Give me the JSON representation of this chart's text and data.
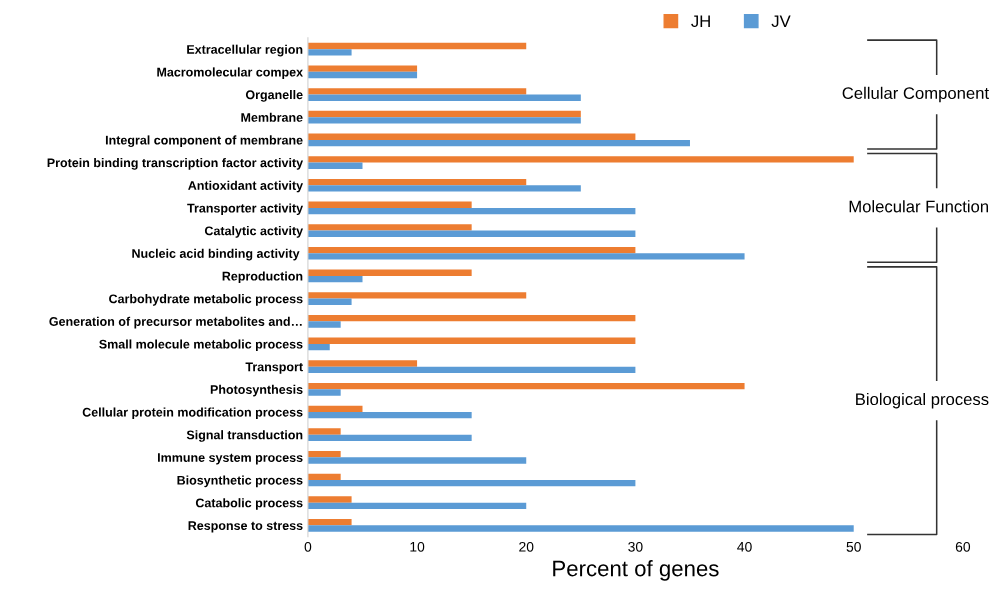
{
  "chart_data": {
    "type": "bar",
    "orientation": "horizontal",
    "categories": [
      "Extracellular region",
      "Macromolecular compex",
      "Organelle",
      "Membrane",
      "Integral component of membrane",
      "Protein binding transcription factor activity",
      "Antioxidant activity",
      "Transporter activity",
      "Catalytic activity",
      "Nucleic acid binding activity ",
      "Reproduction",
      "Carbohydrate metabolic process",
      "Generation of precursor metabolites and…",
      "Small molecule metabolic process",
      "Transport",
      "Photosynthesis",
      "Cellular protein modification process",
      "Signal transduction",
      "Immune system process",
      "Biosynthetic process",
      "Catabolic process",
      "Response to stress"
    ],
    "series": [
      {
        "name": "JH",
        "color": "#ed7d31",
        "values": [
          20,
          10,
          20,
          25,
          30,
          50,
          20,
          15,
          15,
          30,
          15,
          20,
          30,
          30,
          10,
          40,
          5,
          3,
          3,
          3,
          4,
          4
        ]
      },
      {
        "name": "JV",
        "color": "#5b9bd5",
        "values": [
          4,
          10,
          25,
          25,
          35,
          5,
          25,
          30,
          30,
          40,
          5,
          4,
          3,
          2,
          30,
          3,
          15,
          15,
          20,
          30,
          20,
          50
        ]
      }
    ],
    "xlim": [
      0,
      60
    ],
    "xticks": [
      0,
      10,
      20,
      30,
      40,
      50,
      60
    ],
    "xlabel": "Percent of genes",
    "annotations": [
      "Cellular Component",
      "Molecular Function",
      "Biological process"
    ],
    "grid": false,
    "legend": "top right"
  }
}
